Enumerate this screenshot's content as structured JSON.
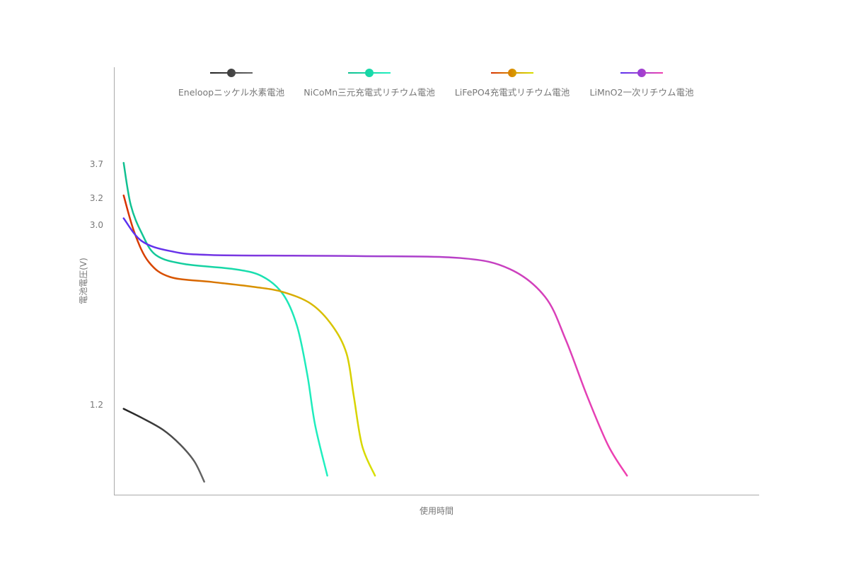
{
  "chart_data": {
    "type": "line",
    "title": "",
    "xlabel": "使用時間",
    "ylabel": "電池電圧(V)",
    "y_ticks": [
      3.7,
      3.2,
      3.0,
      1.2
    ],
    "y_tick_labels": [
      "3.7",
      "3.2",
      "3.0",
      "1.2"
    ],
    "x_ticks": [],
    "grid": false,
    "legend": "top",
    "series": [
      {
        "name": "Eneloopニッケル水素電池",
        "colors": [
          "#222222",
          "#666666"
        ],
        "x": [
          1.4,
          4.2,
          7.5,
          10.2,
          12.4,
          13.9
        ],
        "y": [
          1.16,
          1.07,
          0.95,
          0.8,
          0.63,
          0.43
        ]
      },
      {
        "name": "NiCoMn三元充電式リチウム電池",
        "colors": [
          "#10c090",
          "#20f0c0"
        ],
        "x": [
          1.4,
          2.5,
          4.2,
          6.4,
          10.8,
          18.4,
          22.8,
          26.1,
          28.3,
          29.9,
          31.1,
          33.0
        ],
        "y": [
          3.72,
          3.15,
          2.92,
          2.7,
          2.61,
          2.56,
          2.49,
          2.31,
          1.99,
          1.5,
          1.0,
          0.49
        ]
      },
      {
        "name": "LiFePO4充電式リチウム電池",
        "colors": [
          "#d83000",
          "#d89000",
          "#d8e000"
        ],
        "x": [
          1.4,
          3.1,
          5.3,
          8.6,
          15.1,
          21.7,
          26.1,
          30.5,
          33.8,
          36.0,
          37.1,
          38.4,
          40.4
        ],
        "y": [
          3.24,
          2.92,
          2.63,
          2.48,
          2.43,
          2.38,
          2.33,
          2.21,
          1.99,
          1.71,
          1.29,
          0.79,
          0.49
        ]
      },
      {
        "name": "LiMnO2一次リチウム電池",
        "colors": [
          "#5a30f0",
          "#a040d0",
          "#f040b0"
        ],
        "x": [
          1.4,
          4.2,
          8.6,
          15.1,
          37.1,
          53.6,
          61.3,
          66.8,
          70.0,
          73.3,
          76.6,
          79.5
        ],
        "y": [
          3.05,
          2.84,
          2.74,
          2.7,
          2.69,
          2.67,
          2.56,
          2.28,
          1.85,
          1.29,
          0.79,
          0.49
        ]
      }
    ]
  }
}
